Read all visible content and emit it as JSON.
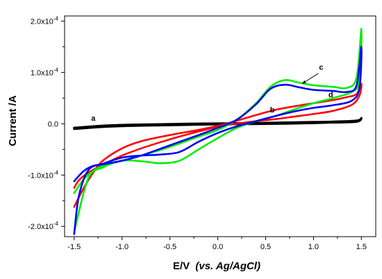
{
  "chart_data": {
    "type": "line",
    "title": "",
    "xlabel_main": "E/V",
    "xlabel_paren": "(vs. Ag/AgCl)",
    "ylabel": "Current /A",
    "xlim": [
      -1.6,
      1.65
    ],
    "ylim": [
      -0.00022,
      0.00021
    ],
    "x_ticks": [
      -1.5,
      -1.0,
      -0.5,
      0.0,
      0.5,
      1.0,
      1.5
    ],
    "x_tick_labels": [
      "-1.5",
      "-1.0",
      "-0.5",
      "0.0",
      "0.5",
      "1.0",
      "1.5"
    ],
    "y_ticks": [
      -0.0002,
      -0.0001,
      0.0,
      0.0001,
      0.0002
    ],
    "y_tick_labels": [
      {
        "mantissa": "-2.0x10",
        "exp": "-4"
      },
      {
        "mantissa": "-1.0x10",
        "exp": "-4"
      },
      {
        "mantissa": "0.0",
        "exp": ""
      },
      {
        "mantissa": "1.0x10",
        "exp": "-4"
      },
      {
        "mantissa": "2.0x10",
        "exp": "-4"
      }
    ],
    "grid": false,
    "legend": "none",
    "series": [
      {
        "label": "a",
        "color": "#000000",
        "points": [
          [
            -1.5,
            -8e-06
          ],
          [
            -1.2,
            -4e-06
          ],
          [
            -0.9,
            -2e-06
          ],
          [
            -0.6,
            -1e-06
          ],
          [
            -0.3,
            0.0
          ],
          [
            0.0,
            5e-07
          ],
          [
            0.3,
            1e-06
          ],
          [
            0.6,
            2e-06
          ],
          [
            0.9,
            3e-06
          ],
          [
            1.2,
            4e-06
          ],
          [
            1.45,
            6e-06
          ],
          [
            1.5,
            1.1e-05
          ],
          [
            1.45,
            4e-06
          ],
          [
            1.2,
            2.5e-06
          ],
          [
            0.9,
            1e-06
          ],
          [
            0.6,
            0.0
          ],
          [
            0.3,
            -5e-07
          ],
          [
            0.0,
            -1e-06
          ],
          [
            -0.3,
            -2e-06
          ],
          [
            -0.6,
            -3e-06
          ],
          [
            -0.9,
            -4e-06
          ],
          [
            -1.2,
            -6e-06
          ],
          [
            -1.5,
            -1e-05
          ]
        ]
      },
      {
        "label": "b",
        "color": "#ff0000",
        "points": [
          [
            -1.5,
            -0.000162
          ],
          [
            -1.4,
            -0.000125
          ],
          [
            -1.3,
            -9.5e-05
          ],
          [
            -1.2,
            -7.2e-05
          ],
          [
            -1.0,
            -4.8e-05
          ],
          [
            -0.8,
            -3.4e-05
          ],
          [
            -0.5,
            -2.2e-05
          ],
          [
            -0.2,
            -1.2e-05
          ],
          [
            0.0,
            -4e-06
          ],
          [
            0.2,
            6e-06
          ],
          [
            0.4,
            1.7e-05
          ],
          [
            0.6,
            2.7e-05
          ],
          [
            0.8,
            3.4e-05
          ],
          [
            1.0,
            4e-05
          ],
          [
            1.2,
            4.6e-05
          ],
          [
            1.35,
            5.2e-05
          ],
          [
            1.45,
            5.8e-05
          ],
          [
            1.5,
            7.8e-05
          ],
          [
            1.48,
            5.5e-05
          ],
          [
            1.4,
            3.7e-05
          ],
          [
            1.2,
            2.5e-05
          ],
          [
            1.0,
            1.9e-05
          ],
          [
            0.8,
            1.4e-05
          ],
          [
            0.6,
            9e-06
          ],
          [
            0.4,
            5e-06
          ],
          [
            0.2,
            0.0
          ],
          [
            0.0,
            -6e-06
          ],
          [
            -0.2,
            -1.5e-05
          ],
          [
            -0.4,
            -2.5e-05
          ],
          [
            -0.6,
            -3.6e-05
          ],
          [
            -0.8,
            -4.8e-05
          ],
          [
            -1.0,
            -6.2e-05
          ],
          [
            -1.2,
            -8e-05
          ],
          [
            -1.35,
            -9.5e-05
          ],
          [
            -1.45,
            -0.00011
          ],
          [
            -1.5,
            -0.000125
          ]
        ]
      },
      {
        "label": "c",
        "color": "#00ee00",
        "points": [
          [
            -1.5,
            -0.000135
          ],
          [
            -1.4,
            -0.000108
          ],
          [
            -1.3,
            -9.2e-05
          ],
          [
            -1.2,
            -8.2e-05
          ],
          [
            -1.0,
            -7.2e-05
          ],
          [
            -0.8,
            -6.2e-05
          ],
          [
            -0.5,
            -4.5e-05
          ],
          [
            -0.2,
            -2.5e-05
          ],
          [
            0.0,
            -1.2e-05
          ],
          [
            0.2,
            8e-06
          ],
          [
            0.4,
            4e-05
          ],
          [
            0.55,
            7.2e-05
          ],
          [
            0.7,
            8.5e-05
          ],
          [
            0.85,
            8e-05
          ],
          [
            1.0,
            7.5e-05
          ],
          [
            1.2,
            7.2e-05
          ],
          [
            1.35,
            7e-05
          ],
          [
            1.45,
            9e-05
          ],
          [
            1.5,
            0.000185
          ],
          [
            1.48,
            8.5e-05
          ],
          [
            1.4,
            6.2e-05
          ],
          [
            1.2,
            5e-05
          ],
          [
            1.0,
            4e-05
          ],
          [
            0.8,
            2.8e-05
          ],
          [
            0.6,
            1.5e-05
          ],
          [
            0.4,
            5e-06
          ],
          [
            0.2,
            -8e-06
          ],
          [
            0.0,
            -2.8e-05
          ],
          [
            -0.2,
            -5e-05
          ],
          [
            -0.4,
            -7.2e-05
          ],
          [
            -0.6,
            -7.7e-05
          ],
          [
            -0.8,
            -7.3e-05
          ],
          [
            -1.0,
            -7.2e-05
          ],
          [
            -1.2,
            -8.5e-05
          ],
          [
            -1.35,
            -0.000105
          ],
          [
            -1.48,
            -0.000195
          ],
          [
            -1.5,
            -0.000215
          ]
        ]
      },
      {
        "label": "d",
        "color": "#0000ff",
        "points": [
          [
            -1.5,
            -0.000112
          ],
          [
            -1.4,
            -9.2e-05
          ],
          [
            -1.3,
            -8.2e-05
          ],
          [
            -1.2,
            -7.9e-05
          ],
          [
            -1.0,
            -7.2e-05
          ],
          [
            -0.8,
            -6.2e-05
          ],
          [
            -0.5,
            -4.2e-05
          ],
          [
            -0.2,
            -2.2e-05
          ],
          [
            0.0,
            -8e-06
          ],
          [
            0.2,
            8e-06
          ],
          [
            0.4,
            3.8e-05
          ],
          [
            0.55,
            6.8e-05
          ],
          [
            0.7,
            7.6e-05
          ],
          [
            0.85,
            7.1e-05
          ],
          [
            1.0,
            6.6e-05
          ],
          [
            1.2,
            6.4e-05
          ],
          [
            1.35,
            6.2e-05
          ],
          [
            1.45,
            7.5e-05
          ],
          [
            1.5,
            0.00015
          ],
          [
            1.48,
            7e-05
          ],
          [
            1.4,
            4.5e-05
          ],
          [
            1.2,
            3.6e-05
          ],
          [
            1.0,
            3.1e-05
          ],
          [
            0.8,
            2.4e-05
          ],
          [
            0.6,
            1.5e-05
          ],
          [
            0.4,
            5e-06
          ],
          [
            0.2,
            -5e-06
          ],
          [
            0.0,
            -1.8e-05
          ],
          [
            -0.2,
            -3.5e-05
          ],
          [
            -0.4,
            -5.5e-05
          ],
          [
            -0.6,
            -6e-05
          ],
          [
            -0.8,
            -6.2e-05
          ],
          [
            -1.0,
            -6.6e-05
          ],
          [
            -1.2,
            -7.8e-05
          ],
          [
            -1.35,
            -9e-05
          ],
          [
            -1.45,
            -0.00014
          ],
          [
            -1.5,
            -0.000215
          ]
        ]
      }
    ],
    "annotations": [
      {
        "text": "a",
        "x": -1.3,
        "y": 6e-06
      },
      {
        "text": "b",
        "x": 0.57,
        "y": 2.2e-05
      },
      {
        "text": "c",
        "x": 1.08,
        "y": 0.000105
      },
      {
        "text": "d",
        "x": 1.18,
        "y": 5.2e-05
      }
    ]
  }
}
